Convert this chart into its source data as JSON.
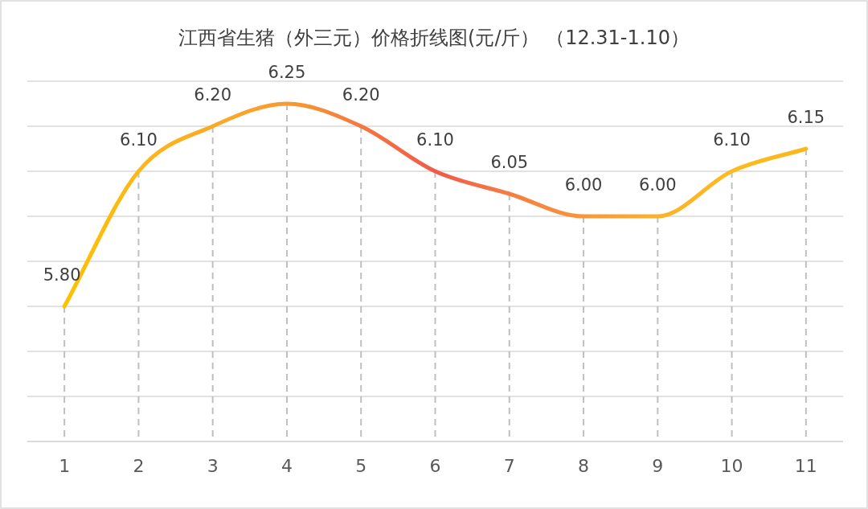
{
  "chart_data": {
    "type": "line",
    "title": "江西省生猪（外三元）价格折线图(元/斤） （12.31-1.10）",
    "categories": [
      "1",
      "2",
      "3",
      "4",
      "5",
      "6",
      "7",
      "8",
      "9",
      "10",
      "11"
    ],
    "values": [
      5.8,
      6.1,
      6.2,
      6.25,
      6.2,
      6.1,
      6.05,
      6.0,
      6.0,
      6.1,
      6.15
    ],
    "colors": [
      "#ffc000",
      "#fdb816",
      "#fbaa26",
      "#f99a30",
      "#f6773e",
      "#f2594a",
      "#f67d40",
      "#f9963a",
      "#fcb22a",
      "#fdbb20",
      "#fbb61d"
    ],
    "ylim": [
      5.5,
      6.3
    ],
    "yticks": [
      {
        "value": 5.5,
        "label": null
      },
      {
        "value": 5.6,
        "label": null
      },
      {
        "value": 5.7,
        "label": null
      },
      {
        "value": 5.8,
        "label": null
      },
      {
        "value": 5.9,
        "label": null
      },
      {
        "value": 6.0,
        "label": null
      },
      {
        "value": 6.1,
        "label": null
      },
      {
        "value": 6.2,
        "label": null
      },
      {
        "value": 6.3,
        "label": null
      }
    ],
    "value_labels": [
      "5.80",
      "6.10",
      "6.20",
      "6.25",
      "6.20",
      "6.10",
      "6.05",
      "6.00",
      "6.00",
      "6.10",
      "6.15"
    ],
    "grid": true,
    "marker": "none",
    "line_style": "solid"
  }
}
